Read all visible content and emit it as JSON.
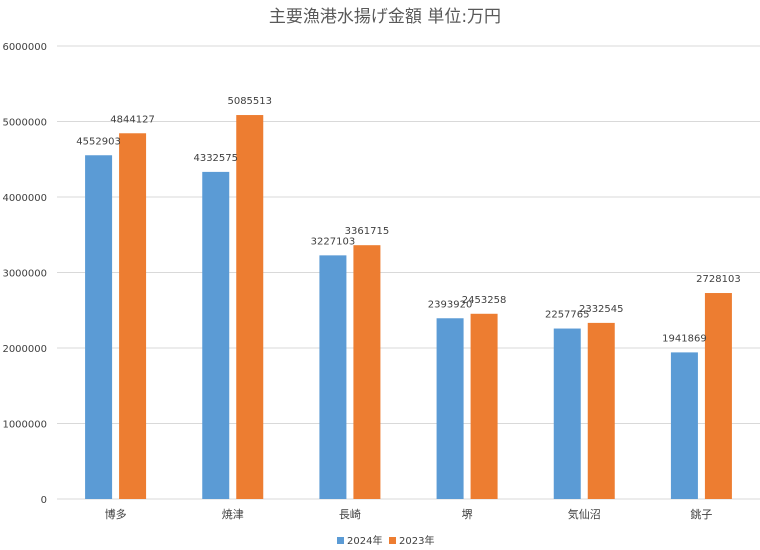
{
  "chart_data": {
    "type": "bar",
    "title": "主要漁港水揚げ金額 単位:万円",
    "categories": [
      "博多",
      "焼津",
      "長崎",
      "堺",
      "気仙沼",
      "銚子"
    ],
    "series": [
      {
        "name": "2024年",
        "color": "#5b9bd5",
        "values": [
          4552903,
          4332575,
          3227103,
          2393920,
          2257765,
          1941869
        ]
      },
      {
        "name": "2023年",
        "color": "#ed7d31",
        "values": [
          4844127,
          5085513,
          3361715,
          2453258,
          2332545,
          2728103
        ]
      }
    ],
    "yticks": [
      "0",
      "1000000",
      "2000000",
      "3000000",
      "4000000",
      "5000000",
      "6000000"
    ],
    "ylim": [
      0,
      6000000
    ],
    "grid": true,
    "legend_position": "bottom",
    "data_labels": true
  }
}
